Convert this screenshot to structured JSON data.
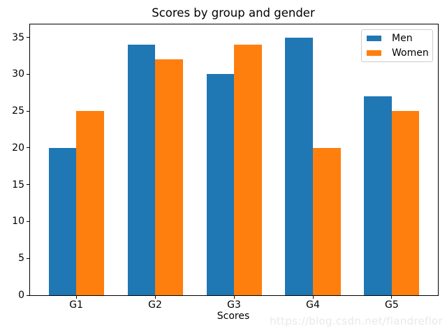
{
  "chart_data": {
    "type": "bar",
    "title": "Scores by group and gender",
    "xlabel": "Scores",
    "ylabel": "",
    "categories": [
      "G1",
      "G2",
      "G3",
      "G4",
      "G5"
    ],
    "series": [
      {
        "name": "Men",
        "color": "#1f77b4",
        "values": [
          20,
          34,
          30,
          35,
          27
        ]
      },
      {
        "name": "Women",
        "color": "#ff7f0e",
        "values": [
          25,
          32,
          34,
          20,
          25
        ]
      }
    ],
    "yticks": [
      0,
      5,
      10,
      15,
      20,
      25,
      30,
      35
    ],
    "ylim": [
      0,
      36.75
    ],
    "xlim": [
      -0.585,
      4.585
    ],
    "bar_width": 0.35,
    "grid": false,
    "legend_position": "upper right"
  },
  "watermark": {
    "text": "https://blog.csdn.net/flandreflor",
    "color": "#e9e9e9"
  }
}
